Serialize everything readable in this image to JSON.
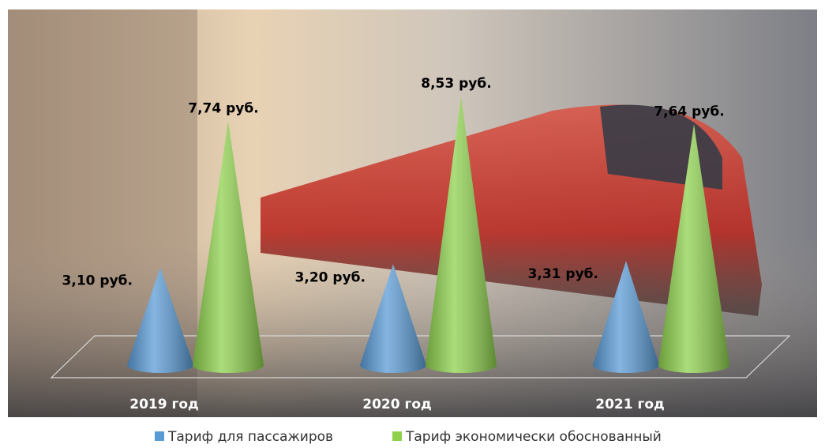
{
  "chart_data": {
    "type": "cone",
    "categories": [
      "2019 год",
      "2020 год",
      "2021 год"
    ],
    "series": [
      {
        "name": "Тариф для пассажиров",
        "color": "#5b9bd5",
        "values": [
          3.1,
          3.2,
          3.31
        ],
        "value_labels": [
          "3,10 руб.",
          "3,20 руб.",
          "3,31 руб."
        ]
      },
      {
        "name": "Тариф экономически обоснованный",
        "color": "#8fd14f",
        "values": [
          7.74,
          8.53,
          7.64
        ],
        "value_labels": [
          "7,74 руб.",
          "8,53 руб.",
          "7,64 руб."
        ]
      }
    ],
    "legend": "bottom"
  }
}
